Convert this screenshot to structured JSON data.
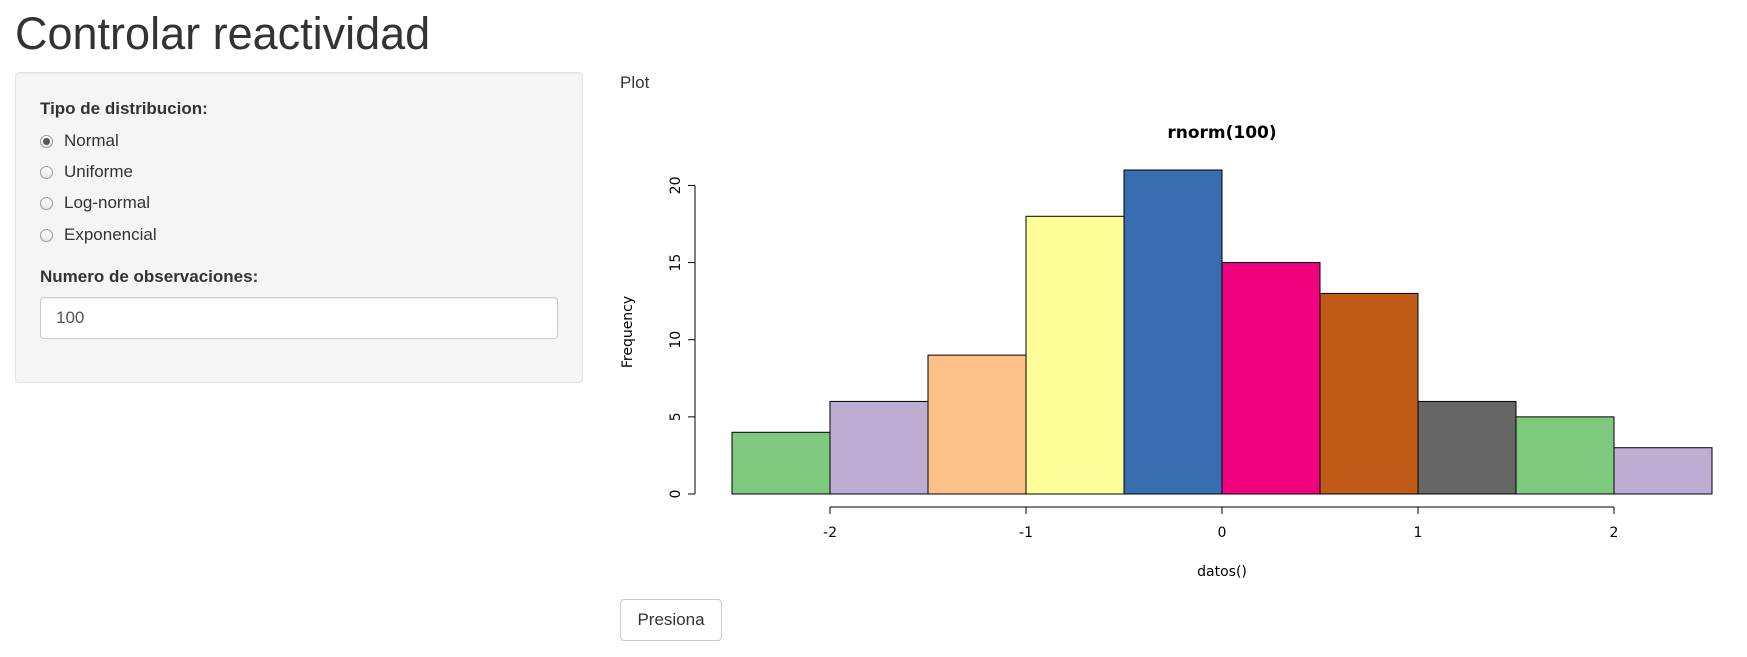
{
  "page": {
    "title": "Controlar reactividad"
  },
  "sidebar": {
    "distribution_label": "Tipo de distribucion:",
    "options": [
      {
        "label": "Normal",
        "checked": true
      },
      {
        "label": "Uniforme",
        "checked": false
      },
      {
        "label": "Log-normal",
        "checked": false
      },
      {
        "label": "Exponencial",
        "checked": false
      }
    ],
    "obs_label": "Numero de observaciones:",
    "obs_value": "100"
  },
  "main": {
    "tab_label": "Plot",
    "button_label": "Presiona"
  },
  "chart_data": {
    "type": "bar",
    "title": "rnorm(100)",
    "xlabel": "datos()",
    "ylabel": "Frequency",
    "bins": [
      {
        "from": -2.5,
        "to": -2.0,
        "count": 4
      },
      {
        "from": -2.0,
        "to": -1.5,
        "count": 6
      },
      {
        "from": -1.5,
        "to": -1.0,
        "count": 9
      },
      {
        "from": -1.0,
        "to": -0.5,
        "count": 18
      },
      {
        "from": -0.5,
        "to": 0.0,
        "count": 21
      },
      {
        "from": 0.0,
        "to": 0.5,
        "count": 15
      },
      {
        "from": 0.5,
        "to": 1.0,
        "count": 13
      },
      {
        "from": 1.0,
        "to": 1.5,
        "count": 6
      },
      {
        "from": 1.5,
        "to": 2.0,
        "count": 5
      },
      {
        "from": 2.0,
        "to": 2.5,
        "count": 3
      }
    ],
    "bar_colors": [
      "#7fc97f",
      "#beaed4",
      "#fdc086",
      "#ffff99",
      "#386cb0",
      "#f0027f",
      "#bf5b17",
      "#666666",
      "#7fc97f",
      "#beaed4"
    ],
    "xlim": [
      -2.5,
      2.5
    ],
    "ylim": [
      0,
      21
    ],
    "xticks": [
      -2,
      -1,
      0,
      1,
      2
    ],
    "yticks": [
      0,
      5,
      10,
      15,
      20
    ],
    "grid": false
  }
}
